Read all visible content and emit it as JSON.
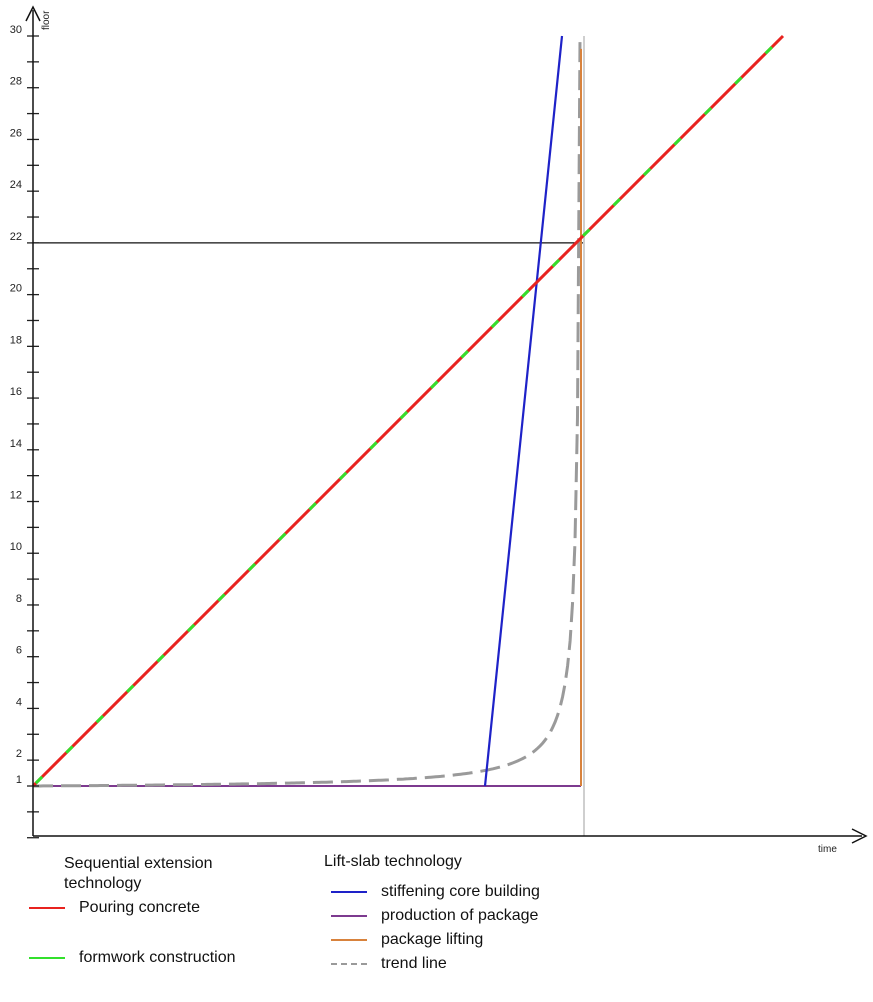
{
  "chart_data": {
    "type": "line",
    "title": "",
    "xlabel": "time",
    "ylabel": "floor",
    "x_ticks": [],
    "y_ticks": [
      1,
      2,
      4,
      6,
      8,
      10,
      12,
      14,
      16,
      18,
      20,
      22,
      24,
      26,
      28,
      30
    ],
    "reference_line_y": 22,
    "grid": false,
    "legend_groups": [
      {
        "heading": "Sequential extension technology",
        "entries": [
          {
            "name": "Pouring concrete",
            "color": "#e8231f",
            "style": "solid"
          },
          {
            "name": "formwork construction",
            "color": "#33e02c",
            "style": "solid"
          }
        ]
      },
      {
        "heading": "Lift-slab technology",
        "entries": [
          {
            "name": "stiffening core building",
            "color": "#1e22c8",
            "style": "solid"
          },
          {
            "name": "production of package",
            "color": "#7d3a8f",
            "style": "solid"
          },
          {
            "name": "package lifting",
            "color": "#d8823c",
            "style": "solid"
          },
          {
            "name": "trend line",
            "color": "#9a9a9a",
            "style": "dashed"
          }
        ]
      }
    ]
  }
}
